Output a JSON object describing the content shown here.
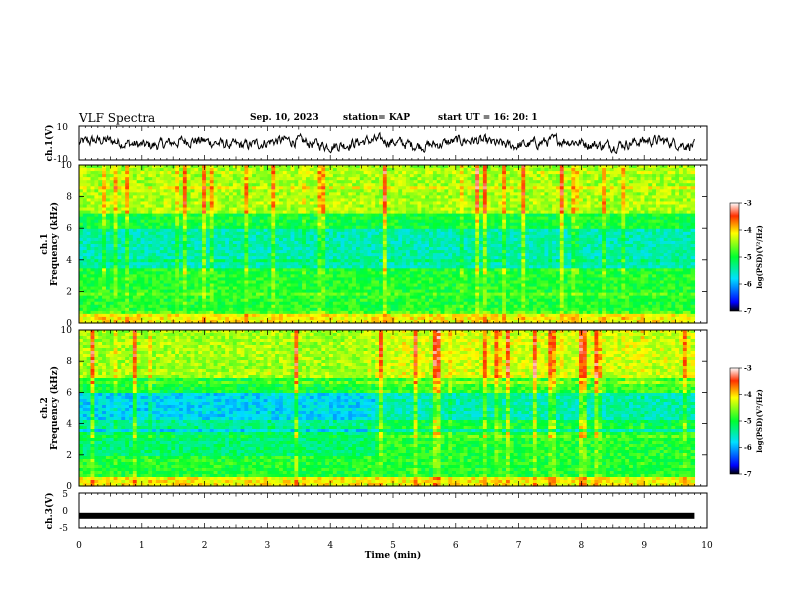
{
  "header": {
    "title": "VLF Spectra",
    "date": "Sep. 10, 2023",
    "station": "station= KAP",
    "start": "start  UT =   16: 20: 1"
  },
  "chart_data": [
    {
      "type": "line",
      "panel": "ch1-waveform",
      "ylabel": "ch.1(V)",
      "ylim": [
        -10,
        10
      ],
      "yticks": [
        "10",
        "-10"
      ],
      "xlim": [
        0,
        10
      ],
      "description_values": "noisy waveform oscillating roughly between -7 and +6 V"
    },
    {
      "type": "heatmap",
      "panel": "ch1-spectrogram",
      "ylabel": "Frequency  (kHz)",
      "channel_label": "ch.1",
      "ylim": [
        0,
        10
      ],
      "yticks": [
        "0",
        "2",
        "4",
        "6",
        "8",
        "10"
      ],
      "xlim": [
        0,
        9.8
      ],
      "colorbar": {
        "label": "log(PSD)(V²/Hz)",
        "range": [
          -7,
          -3
        ],
        "ticks": [
          "-3",
          "-4",
          "-5",
          "-6",
          "-7"
        ]
      }
    },
    {
      "type": "heatmap",
      "panel": "ch2-spectrogram",
      "ylabel": "Frequency  (kHz)",
      "channel_label": "ch.2",
      "ylim": [
        0,
        10
      ],
      "yticks": [
        "0",
        "2",
        "4",
        "6",
        "8",
        "10"
      ],
      "xlim": [
        0,
        9.8
      ],
      "colorbar": {
        "label": "log(PSD)(V²/Hz)",
        "range": [
          -7,
          -3
        ],
        "ticks": [
          "-3",
          "-4",
          "-5",
          "-6",
          "-7"
        ]
      }
    },
    {
      "type": "line",
      "panel": "ch3-waveform",
      "ylabel": "ch.3(V)",
      "ylim": [
        -5,
        5
      ],
      "yticks": [
        "5",
        "0",
        "-5"
      ],
      "level": -1.5,
      "xlim": [
        0,
        10
      ]
    }
  ],
  "xaxis": {
    "label": "Time  (min)",
    "ticks": [
      "0",
      "1",
      "2",
      "3",
      "4",
      "5",
      "6",
      "7",
      "8",
      "9",
      "10"
    ]
  }
}
